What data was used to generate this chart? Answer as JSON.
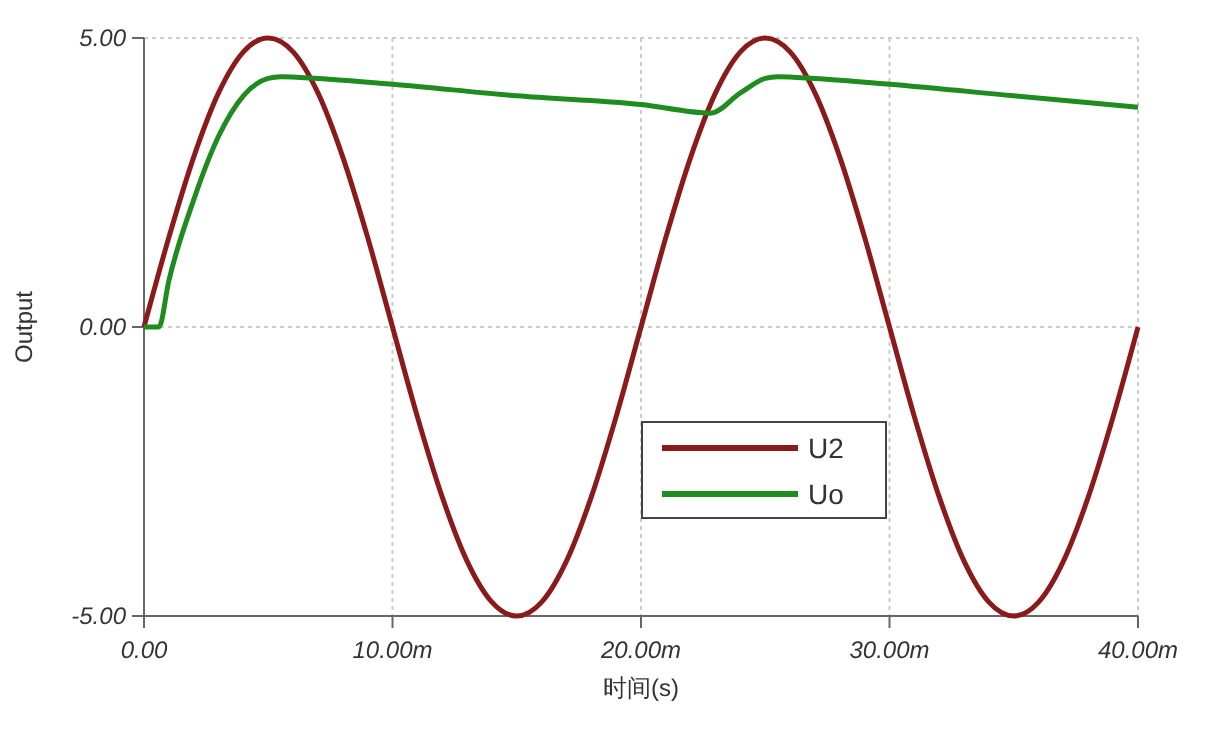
{
  "chart_data": {
    "type": "line",
    "xlabel": "时间(s)",
    "ylabel": "Output",
    "xlim": [
      0,
      40
    ],
    "ylim": [
      -5,
      5
    ],
    "xticks": [
      {
        "value": 0,
        "label": "0.00"
      },
      {
        "value": 10,
        "label": "10.00m"
      },
      {
        "value": 20,
        "label": "20.00m"
      },
      {
        "value": 30,
        "label": "30.00m"
      },
      {
        "value": 40,
        "label": "40.00m"
      }
    ],
    "yticks": [
      {
        "value": -5,
        "label": "-5.00"
      },
      {
        "value": 0,
        "label": "0.00"
      },
      {
        "value": 5,
        "label": "5.00"
      }
    ],
    "grid": true,
    "legend": "bottom right",
    "line_style": "solid",
    "marker": "none",
    "series": [
      {
        "name": "U2",
        "color": "#8b1a1a",
        "x": [
          0,
          1,
          2,
          3,
          4,
          5,
          6,
          7,
          8,
          9,
          10,
          11,
          12,
          13,
          14,
          15,
          16,
          17,
          18,
          19,
          20,
          21,
          22,
          23,
          24,
          25,
          26,
          27,
          28,
          29,
          30,
          31,
          32,
          33,
          34,
          35,
          36,
          37,
          38,
          39,
          40
        ],
        "values": [
          0,
          1.55,
          2.94,
          4.05,
          4.76,
          5,
          4.76,
          4.05,
          2.94,
          1.55,
          0,
          -1.55,
          -2.94,
          -4.05,
          -4.76,
          -5,
          -4.76,
          -4.05,
          -2.94,
          -1.55,
          0,
          1.55,
          2.94,
          4.05,
          4.76,
          5,
          4.76,
          4.05,
          2.94,
          1.55,
          0,
          -1.55,
          -2.94,
          -4.05,
          -4.76,
          -5,
          -4.76,
          -4.05,
          -2.94,
          -1.55,
          0
        ]
      },
      {
        "name": "Uo",
        "color": "#1e8c1e",
        "x": [
          0,
          0.6,
          1,
          2,
          3,
          4,
          5,
          5.5,
          7,
          10,
          15,
          20,
          22.8,
          24,
          25,
          25.5,
          27,
          30,
          35,
          40
        ],
        "values": [
          0,
          0,
          0.8,
          2.2,
          3.3,
          4.0,
          4.3,
          4.33,
          4.3,
          4.2,
          4.0,
          3.85,
          3.7,
          4.05,
          4.3,
          4.33,
          4.3,
          4.2,
          4.0,
          3.8
        ]
      }
    ]
  }
}
